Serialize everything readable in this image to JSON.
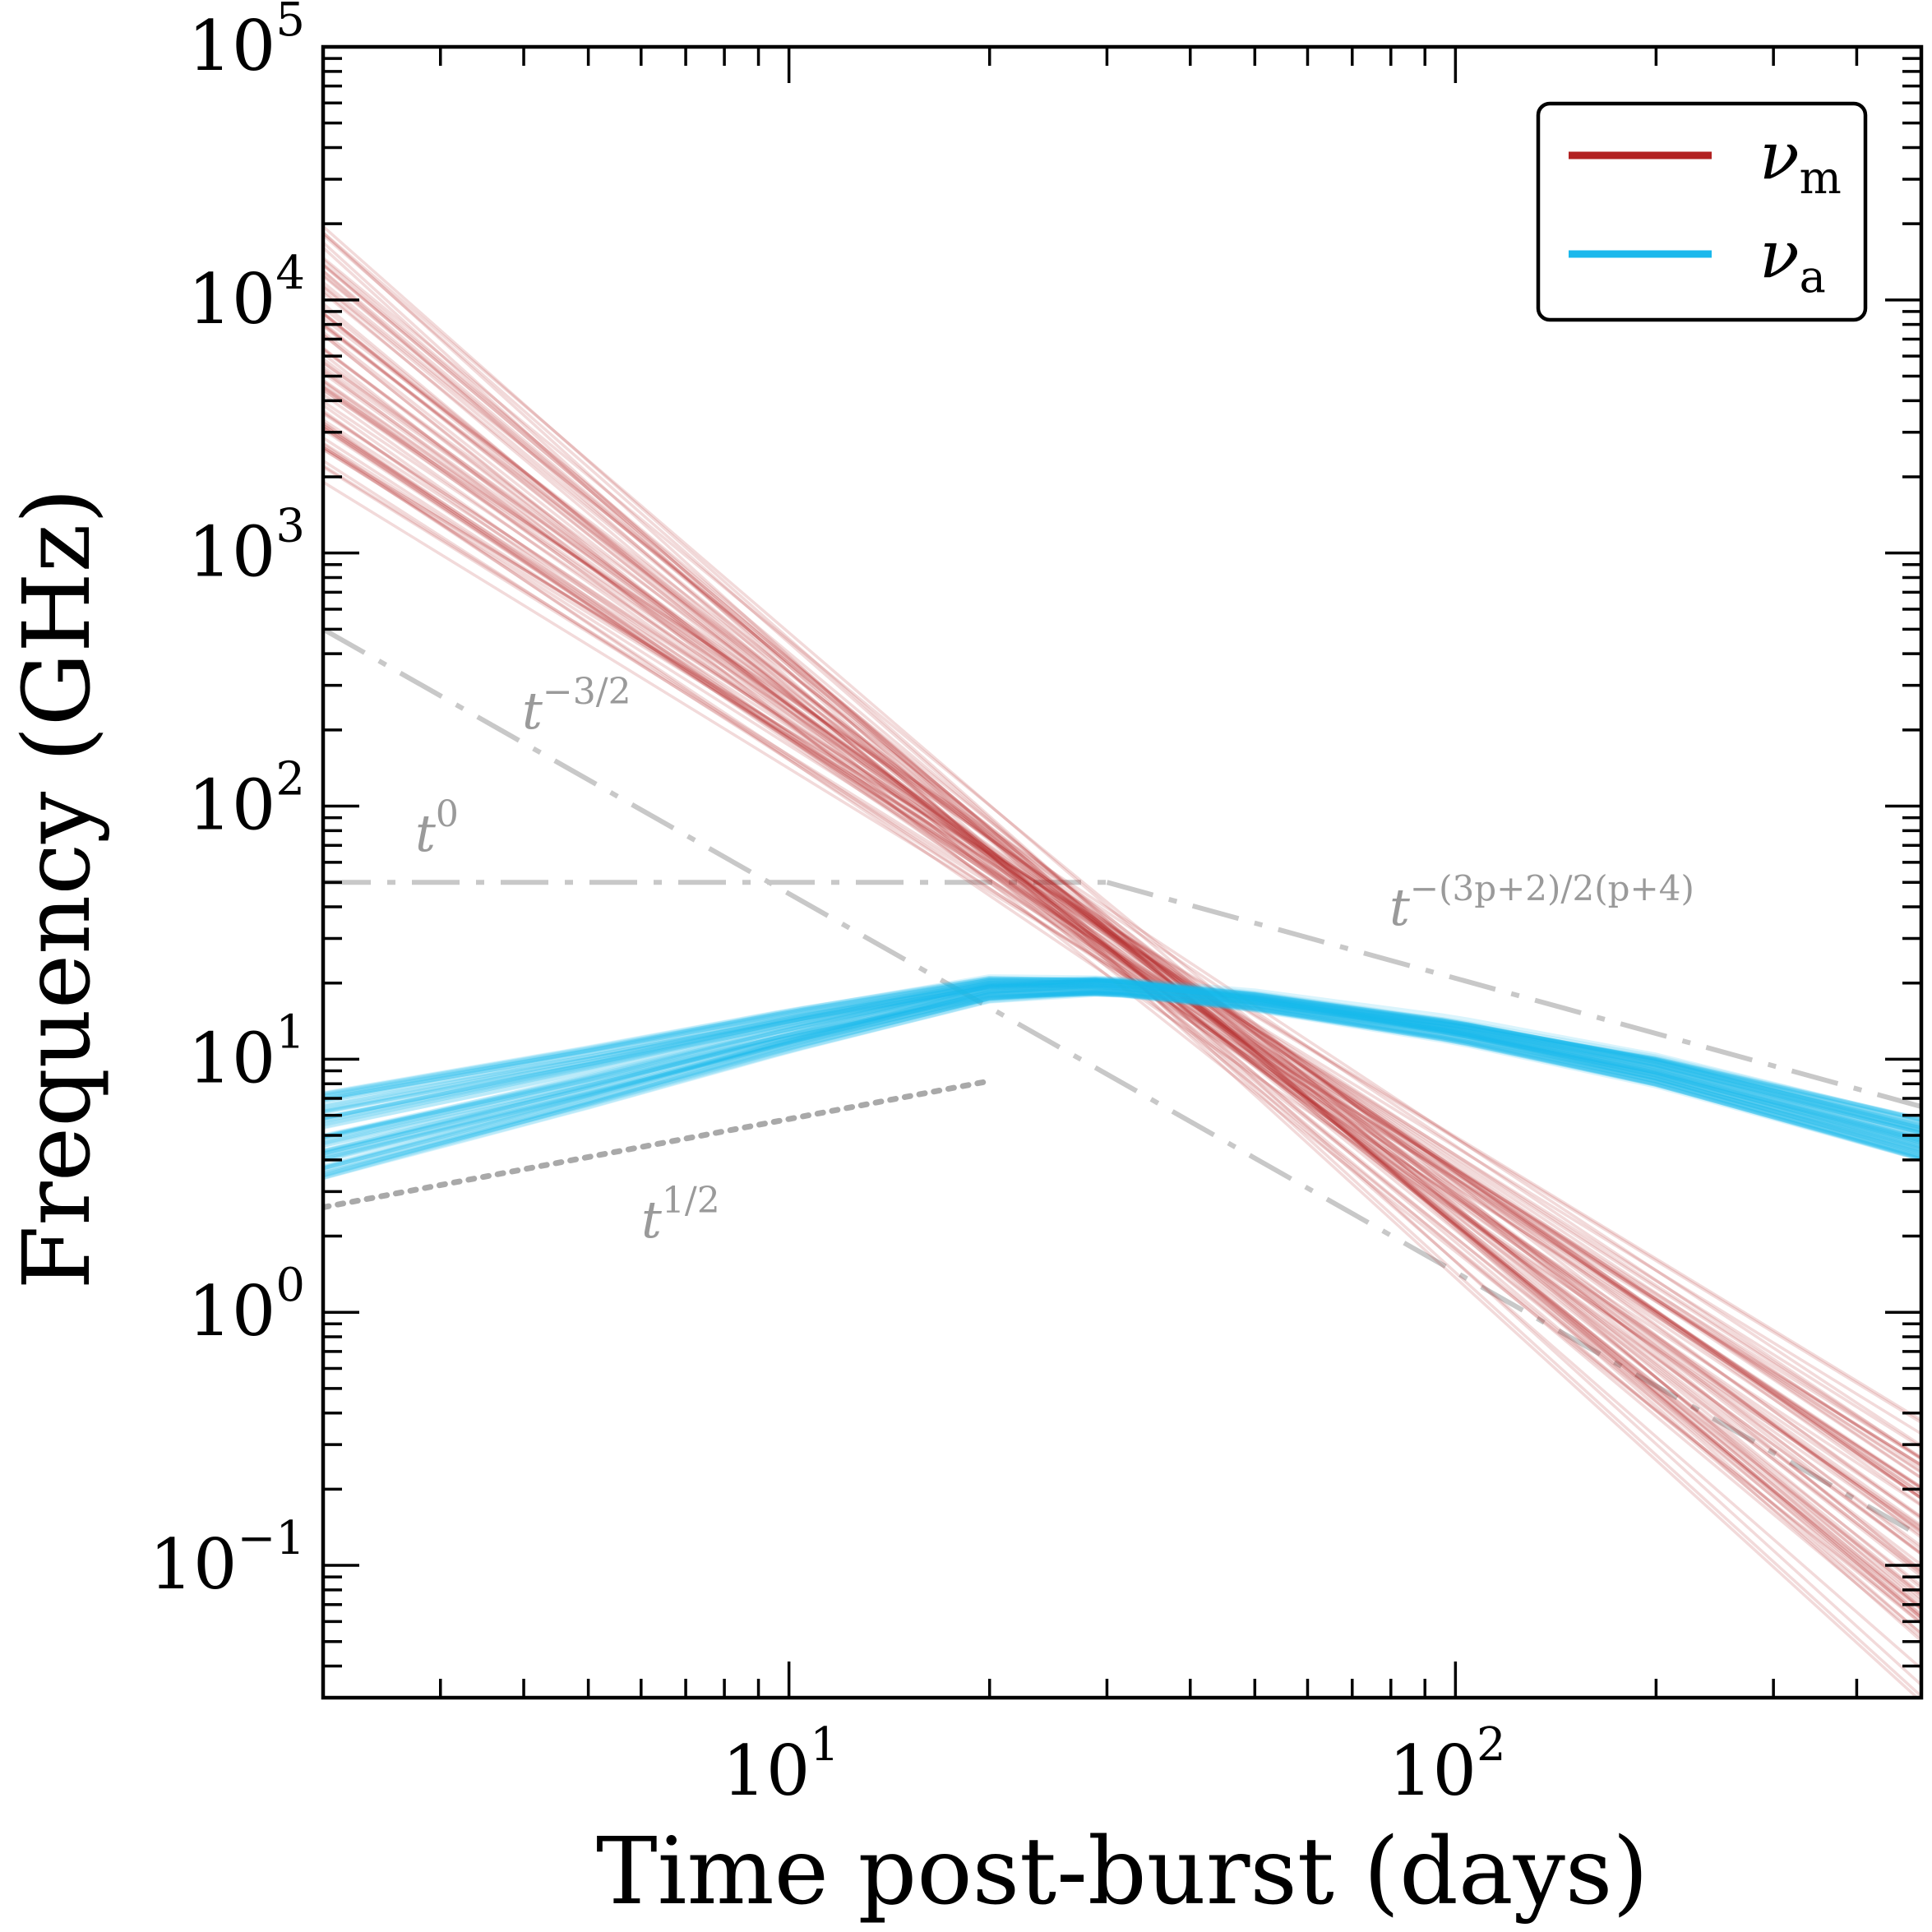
{
  "chart_data": {
    "type": "line",
    "xlabel": "Time post-burst (days)",
    "ylabel": "Frequency (GHz)",
    "x_scale": "log",
    "y_scale": "log",
    "xlim": [
      2.0,
      500.0
    ],
    "ylim": [
      0.03,
      100000
    ],
    "x_ticks": [
      {
        "value": 10,
        "base": "10",
        "exp": "1"
      },
      {
        "value": 100,
        "base": "10",
        "exp": "2"
      }
    ],
    "y_ticks": [
      {
        "value": 0.1,
        "base": "10",
        "exp": "−1"
      },
      {
        "value": 1,
        "base": "10",
        "exp": "0"
      },
      {
        "value": 10,
        "base": "10",
        "exp": "1"
      },
      {
        "value": 100,
        "base": "10",
        "exp": "2"
      },
      {
        "value": 1000,
        "base": "10",
        "exp": "3"
      },
      {
        "value": 10000,
        "base": "10",
        "exp": "4"
      },
      {
        "value": 100000,
        "base": "10",
        "exp": "5"
      }
    ],
    "legend": {
      "position": "top-right",
      "entries": [
        {
          "symbol": "ν",
          "subscript": "m",
          "color": "#b22222"
        },
        {
          "symbol": "ν",
          "subscript": "a",
          "color": "#1ab8ec"
        }
      ]
    },
    "series": [
      {
        "name": "nu_m",
        "kind": "posterior-ensemble",
        "color": "#b22222",
        "n_samples": 80,
        "pivot": {
          "t": 30,
          "nu": 30
        },
        "median_points": [
          [
            2,
            5000
          ],
          [
            10,
            450
          ],
          [
            30,
            30
          ],
          [
            100,
            1.8
          ],
          [
            500,
            0.06
          ]
        ],
        "slope_range": [
          -2.4,
          -1.6
        ]
      },
      {
        "name": "nu_a",
        "kind": "posterior-ensemble",
        "color": "#1ab8ec",
        "n_samples": 80,
        "median_points": [
          [
            2,
            5
          ],
          [
            5,
            8.5
          ],
          [
            10,
            13
          ],
          [
            20,
            19
          ],
          [
            30,
            19.5
          ],
          [
            50,
            17
          ],
          [
            100,
            13
          ],
          [
            200,
            9
          ],
          [
            500,
            4.8
          ]
        ]
      }
    ],
    "reference_lines": [
      {
        "label_base": "t",
        "label_exp": "−3/2",
        "style": "dash-dot",
        "color": "#c8c8c8",
        "points": [
          [
            2,
            500
          ],
          [
            500,
            0.13
          ]
        ]
      },
      {
        "label_base": "t",
        "label_exp": "0",
        "style": "dash-dot",
        "color": "#c8c8c8",
        "points": [
          [
            2,
            50
          ],
          [
            30,
            50
          ]
        ]
      },
      {
        "label_base": "t",
        "label_exp": "−(3p+2)/2(p+4)",
        "style": "dash-dot",
        "color": "#c8c8c8",
        "points": [
          [
            30,
            50
          ],
          [
            500,
            6.5
          ]
        ]
      },
      {
        "label_base": "t",
        "label_exp": "1/2",
        "style": "dotted",
        "color": "#a9a9a9",
        "points": [
          [
            2,
            2.6
          ],
          [
            20,
            8.2
          ]
        ]
      }
    ]
  }
}
